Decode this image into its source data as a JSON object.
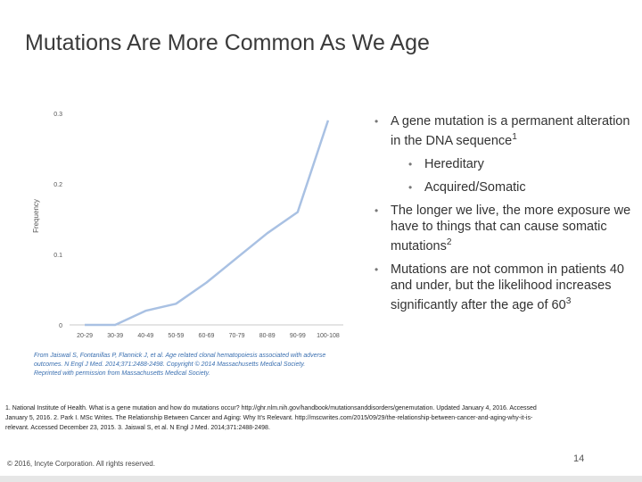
{
  "slide": {
    "title": "Mutations Are More Common As We Age",
    "page_number": "14",
    "footer": "© 2016, Incyte Corporation. All rights reserved."
  },
  "chart_data": {
    "type": "line",
    "title": "",
    "xlabel": "",
    "ylabel": "Frequency",
    "categories": [
      "20-29",
      "30-39",
      "40-49",
      "50-59",
      "60-69",
      "70-79",
      "80-89",
      "90-99",
      "100-108"
    ],
    "values": [
      0.0,
      0.0,
      0.02,
      0.03,
      0.06,
      0.095,
      0.13,
      0.16,
      0.29
    ],
    "ylim": [
      0,
      0.3
    ],
    "yticks": [
      "0",
      "0.1",
      "0.2",
      "0.3"
    ],
    "grid": false,
    "line_color": "#a9c1e3"
  },
  "figure_caption": {
    "line1": "From Jaiswal S, Fontanillas P, Flannick J, et al. Age related clonal hematopoiesis associated with adverse",
    "line2": "outcomes. N Engl J Med. 2014;371:2488-2498. Copyright © 2014 Massachusetts Medical Society.",
    "line3": "Reprinted with permission from Massachusetts Medical Society."
  },
  "bullets": {
    "b1": "A gene mutation is a permanent alteration in the DNA sequence",
    "b1_ref": "1",
    "b1_sub1": "Hereditary",
    "b1_sub2": "Acquired/Somatic",
    "b2": "The longer we live, the more exposure we have to things that can cause somatic mutations",
    "b2_ref": "2",
    "b3": "Mutations are not common in patients 40 and under, but the likelihood increases significantly after the age of 60",
    "b3_ref": "3"
  },
  "references": {
    "line1": "1. National Institute of Health. What is a gene mutation and how do mutations occur? http://ghr.nlm.nih.gov/handbook/mutationsanddisorders/genemutation. Updated January 4, 2016. Accessed",
    "line2": "January 5, 2016. 2. Park I. MSc Writes. The Relationship Between Cancer and Aging: Why It's Relevant. http://mscwrites.com/2015/09/29/the-relationship-between-cancer-and-aging-why-it-is-",
    "line3": "relevant. Accessed December 23, 2015. 3. Jaiswal S, et al. N Engl J Med. 2014;371:2488-2498."
  }
}
